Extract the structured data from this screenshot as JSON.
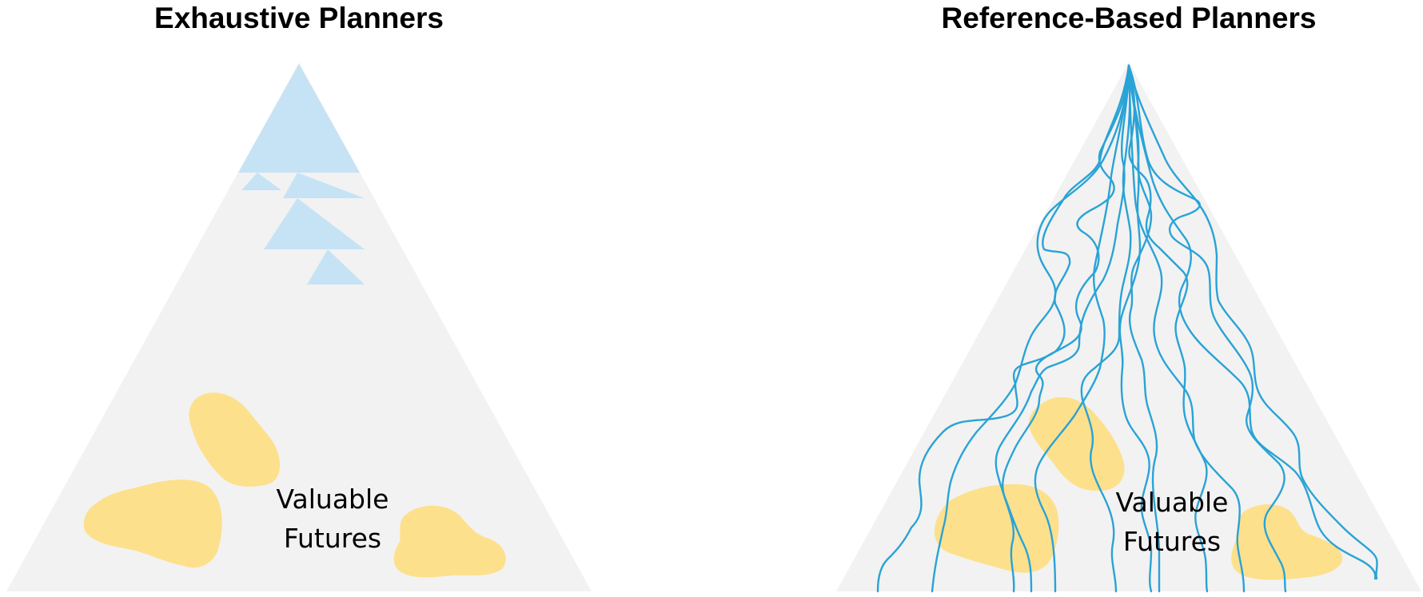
{
  "left_panel": {
    "title": "Exhaustive Planners",
    "label_line1": "Valuable",
    "label_line2": "Futures"
  },
  "right_panel": {
    "title": "Reference-Based Planners",
    "label_line1": "Valuable",
    "label_line2": "Futures"
  },
  "colors": {
    "triangle_fill": "#f2f2f2",
    "explored_region": "#c5e3f5",
    "valuable_region": "#fde08c",
    "trajectory": "#2aa3d6"
  }
}
